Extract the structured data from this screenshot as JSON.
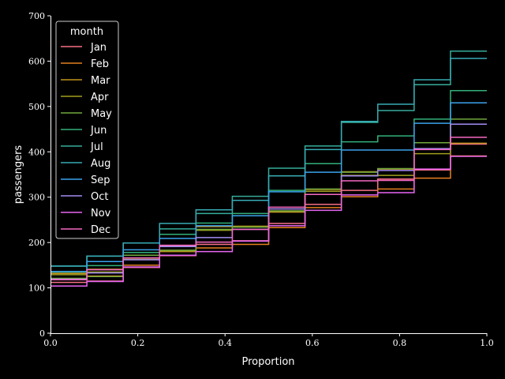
{
  "chart_data": {
    "type": "line",
    "subtype": "ecdf-step",
    "title": "",
    "xlabel": "Proportion",
    "ylabel": "passengers",
    "xlim": [
      0.0,
      1.0
    ],
    "ylim": [
      0,
      700
    ],
    "x_ticks": [
      "0.0",
      "0.2",
      "0.4",
      "0.6",
      "0.8",
      "1.0"
    ],
    "y_ticks": [
      "0",
      "100",
      "200",
      "300",
      "400",
      "500",
      "600",
      "700"
    ],
    "legend": {
      "title": "month",
      "placement": "top-left"
    },
    "grid": false,
    "series": [
      {
        "name": "Jan",
        "color": "#f77189",
        "values": [
          112,
          115,
          145,
          171,
          196,
          204,
          242,
          284,
          315,
          340,
          360,
          417
        ]
      },
      {
        "name": "Feb",
        "color": "#e5801f",
        "values": [
          118,
          126,
          150,
          180,
          196,
          188,
          233,
          277,
          301,
          318,
          342,
          391
        ]
      },
      {
        "name": "Mar",
        "color": "#c0931e",
        "values": [
          132,
          141,
          178,
          193,
          236,
          235,
          267,
          317,
          356,
          362,
          406,
          419
        ]
      },
      {
        "name": "Apr",
        "color": "#9f9f1e",
        "values": [
          129,
          135,
          163,
          181,
          235,
          227,
          269,
          313,
          348,
          348,
          396,
          461
        ]
      },
      {
        "name": "May",
        "color": "#71a93c",
        "values": [
          121,
          125,
          172,
          183,
          229,
          234,
          270,
          318,
          355,
          363,
          420,
          472
        ]
      },
      {
        "name": "Jun",
        "color": "#33b07a",
        "values": [
          135,
          149,
          178,
          218,
          243,
          264,
          315,
          374,
          422,
          435,
          472,
          535
        ]
      },
      {
        "name": "Jul",
        "color": "#35ad9c",
        "values": [
          148,
          170,
          199,
          230,
          264,
          302,
          364,
          413,
          465,
          491,
          548,
          622
        ]
      },
      {
        "name": "Aug",
        "color": "#37abb5",
        "values": [
          148,
          170,
          199,
          242,
          272,
          293,
          347,
          405,
          467,
          505,
          559,
          606
        ]
      },
      {
        "name": "Sep",
        "color": "#3ba3ec",
        "values": [
          136,
          158,
          184,
          209,
          237,
          259,
          312,
          355,
          404,
          404,
          463,
          508
        ]
      },
      {
        "name": "Oct",
        "color": "#a48cf4",
        "values": [
          119,
          133,
          162,
          191,
          211,
          229,
          274,
          306,
          347,
          359,
          407,
          461
        ]
      },
      {
        "name": "Nov",
        "color": "#e866f4",
        "values": [
          104,
          114,
          146,
          172,
          180,
          203,
          237,
          271,
          305,
          310,
          362,
          390
        ]
      },
      {
        "name": "Dec",
        "color": "#f668c2",
        "values": [
          118,
          140,
          166,
          194,
          201,
          229,
          278,
          306,
          336,
          337,
          405,
          432
        ]
      }
    ]
  }
}
